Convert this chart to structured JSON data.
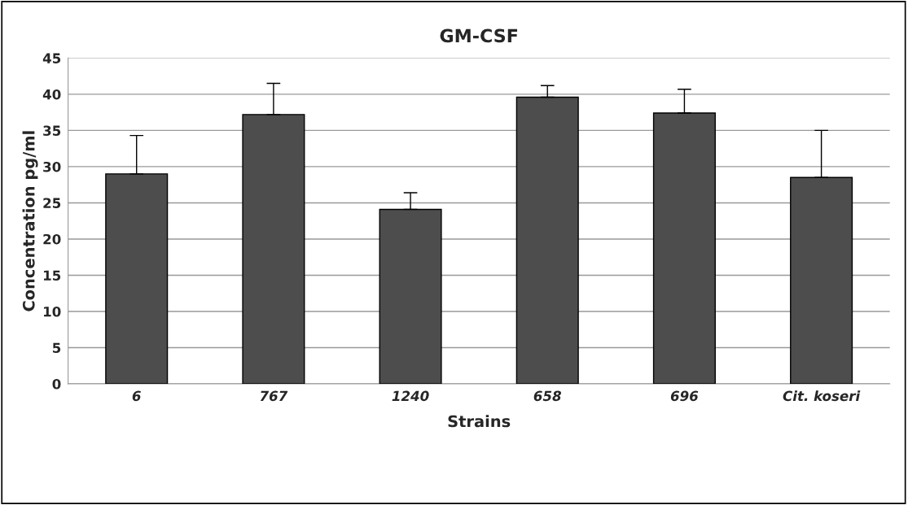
{
  "chart_data": {
    "type": "bar",
    "title": "GM-CSF",
    "xlabel": "Strains",
    "ylabel": "Concentration pg/ml",
    "categories": [
      "6",
      "767",
      "1240",
      "658",
      "696",
      "Cit. koseri"
    ],
    "values": [
      29.0,
      37.2,
      24.1,
      39.6,
      37.4,
      28.5
    ],
    "errors": [
      [
        29.0,
        34.3
      ],
      [
        37.2,
        41.5
      ],
      [
        24.1,
        26.4
      ],
      [
        39.6,
        41.2
      ],
      [
        37.4,
        40.7
      ],
      [
        28.5,
        35.0
      ]
    ],
    "color": "#4d4d4d",
    "ylim": [
      0,
      45
    ],
    "yticks": [
      0,
      5,
      10,
      15,
      20,
      25,
      30,
      35,
      40,
      45
    ],
    "grid": "y",
    "legend": false
  }
}
